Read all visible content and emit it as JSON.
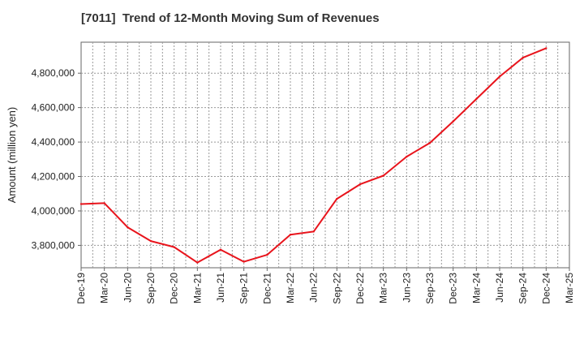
{
  "chart_data": {
    "type": "line",
    "title": "[7011]  Trend of 12-Month Moving Sum of Revenues",
    "xlabel": "",
    "ylabel": "Amount (million yen)",
    "ylim": [
      3670000,
      4980000
    ],
    "y_ticks": [
      3800000,
      4000000,
      4200000,
      4400000,
      4600000,
      4800000
    ],
    "y_tick_labels": [
      "3,800,000",
      "4,000,000",
      "4,200,000",
      "4,400,000",
      "4,600,000",
      "4,800,000"
    ],
    "categories": [
      "Dec-19",
      "Mar-20",
      "Jun-20",
      "Sep-20",
      "Dec-20",
      "Mar-21",
      "Jun-21",
      "Sep-21",
      "Dec-21",
      "Mar-22",
      "Jun-22",
      "Sep-22",
      "Dec-22",
      "Mar-23",
      "Jun-23",
      "Sep-23",
      "Dec-23",
      "Mar-24",
      "Jun-24",
      "Sep-24",
      "Dec-24",
      "Mar-25"
    ],
    "series": [
      {
        "color": "#e8141c",
        "values": [
          4040000,
          4045000,
          3905000,
          3825000,
          3790000,
          3700000,
          3775000,
          3705000,
          3745000,
          3862000,
          3880000,
          4070000,
          4155000,
          4205000,
          4315000,
          4395000,
          4520000,
          4650000,
          4780000,
          4890000,
          4945000,
          null
        ]
      }
    ],
    "grid": true,
    "grid_color": "#999999",
    "legend": "none"
  }
}
